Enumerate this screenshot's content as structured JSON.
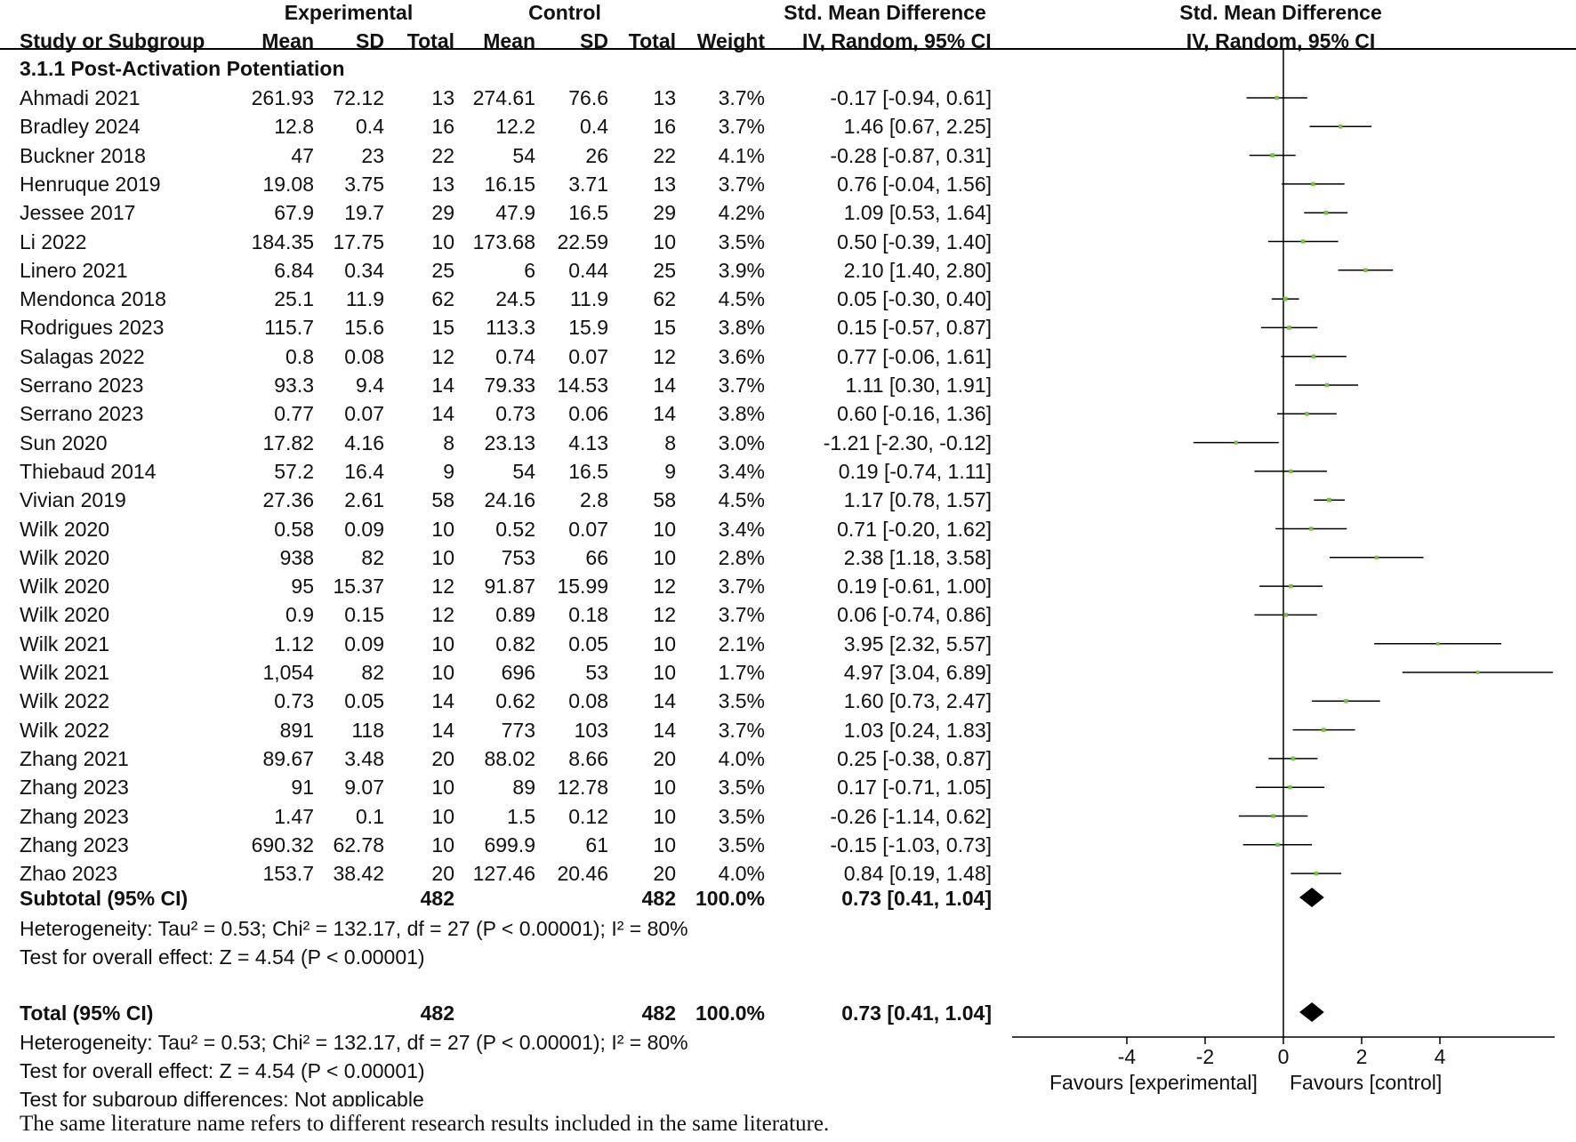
{
  "header": {
    "group_experimental": "Experimental",
    "group_control": "Control",
    "smd_title": "Std. Mean Difference",
    "plot_title": "Std. Mean Difference",
    "col_study": "Study or Subgroup",
    "col_mean_e": "Mean",
    "col_sd_e": "SD",
    "col_total_e": "Total",
    "col_mean_c": "Mean",
    "col_sd_c": "SD",
    "col_total_c": "Total",
    "col_weight": "Weight",
    "col_method": "IV, Random, 95% CI",
    "plot_method": "IV, Random, 95% CI"
  },
  "subgroup_title": "3.1.1 Post-Activation Potentiation",
  "studies": [
    {
      "name": "Ahmadi 2021",
      "mean_e": "261.93",
      "sd_e": "72.12",
      "n_e": "13",
      "mean_c": "274.61",
      "sd_c": "76.6",
      "n_c": "13",
      "weight": "3.7%",
      "ci_text": "-0.17 [-0.94, 0.61]"
    },
    {
      "name": "Bradley 2024",
      "mean_e": "12.8",
      "sd_e": "0.4",
      "n_e": "16",
      "mean_c": "12.2",
      "sd_c": "0.4",
      "n_c": "16",
      "weight": "3.7%",
      "ci_text": "1.46 [0.67, 2.25]"
    },
    {
      "name": "Buckner 2018",
      "mean_e": "47",
      "sd_e": "23",
      "n_e": "22",
      "mean_c": "54",
      "sd_c": "26",
      "n_c": "22",
      "weight": "4.1%",
      "ci_text": "-0.28 [-0.87, 0.31]"
    },
    {
      "name": "Henruque 2019",
      "mean_e": "19.08",
      "sd_e": "3.75",
      "n_e": "13",
      "mean_c": "16.15",
      "sd_c": "3.71",
      "n_c": "13",
      "weight": "3.7%",
      "ci_text": "0.76 [-0.04, 1.56]"
    },
    {
      "name": "Jessee 2017",
      "mean_e": "67.9",
      "sd_e": "19.7",
      "n_e": "29",
      "mean_c": "47.9",
      "sd_c": "16.5",
      "n_c": "29",
      "weight": "4.2%",
      "ci_text": "1.09 [0.53, 1.64]"
    },
    {
      "name": "Li 2022",
      "mean_e": "184.35",
      "sd_e": "17.75",
      "n_e": "10",
      "mean_c": "173.68",
      "sd_c": "22.59",
      "n_c": "10",
      "weight": "3.5%",
      "ci_text": "0.50 [-0.39, 1.40]"
    },
    {
      "name": "Linero 2021",
      "mean_e": "6.84",
      "sd_e": "0.34",
      "n_e": "25",
      "mean_c": "6",
      "sd_c": "0.44",
      "n_c": "25",
      "weight": "3.9%",
      "ci_text": "2.10 [1.40, 2.80]"
    },
    {
      "name": "Mendonca 2018",
      "mean_e": "25.1",
      "sd_e": "11.9",
      "n_e": "62",
      "mean_c": "24.5",
      "sd_c": "11.9",
      "n_c": "62",
      "weight": "4.5%",
      "ci_text": "0.05 [-0.30, 0.40]"
    },
    {
      "name": "Rodrigues 2023",
      "mean_e": "115.7",
      "sd_e": "15.6",
      "n_e": "15",
      "mean_c": "113.3",
      "sd_c": "15.9",
      "n_c": "15",
      "weight": "3.8%",
      "ci_text": "0.15 [-0.57, 0.87]"
    },
    {
      "name": "Salagas 2022",
      "mean_e": "0.8",
      "sd_e": "0.08",
      "n_e": "12",
      "mean_c": "0.74",
      "sd_c": "0.07",
      "n_c": "12",
      "weight": "3.6%",
      "ci_text": "0.77 [-0.06, 1.61]"
    },
    {
      "name": "Serrano 2023",
      "mean_e": "93.3",
      "sd_e": "9.4",
      "n_e": "14",
      "mean_c": "79.33",
      "sd_c": "14.53",
      "n_c": "14",
      "weight": "3.7%",
      "ci_text": "1.11 [0.30, 1.91]"
    },
    {
      "name": "Serrano 2023",
      "mean_e": "0.77",
      "sd_e": "0.07",
      "n_e": "14",
      "mean_c": "0.73",
      "sd_c": "0.06",
      "n_c": "14",
      "weight": "3.8%",
      "ci_text": "0.60 [-0.16, 1.36]"
    },
    {
      "name": "Sun 2020",
      "mean_e": "17.82",
      "sd_e": "4.16",
      "n_e": "8",
      "mean_c": "23.13",
      "sd_c": "4.13",
      "n_c": "8",
      "weight": "3.0%",
      "ci_text": "-1.21 [-2.30, -0.12]"
    },
    {
      "name": "Thiebaud 2014",
      "mean_e": "57.2",
      "sd_e": "16.4",
      "n_e": "9",
      "mean_c": "54",
      "sd_c": "16.5",
      "n_c": "9",
      "weight": "3.4%",
      "ci_text": "0.19 [-0.74, 1.11]"
    },
    {
      "name": "Vivian 2019",
      "mean_e": "27.36",
      "sd_e": "2.61",
      "n_e": "58",
      "mean_c": "24.16",
      "sd_c": "2.8",
      "n_c": "58",
      "weight": "4.5%",
      "ci_text": "1.17 [0.78, 1.57]"
    },
    {
      "name": "Wilk 2020",
      "mean_e": "0.58",
      "sd_e": "0.09",
      "n_e": "10",
      "mean_c": "0.52",
      "sd_c": "0.07",
      "n_c": "10",
      "weight": "3.4%",
      "ci_text": "0.71 [-0.20, 1.62]"
    },
    {
      "name": "Wilk 2020",
      "mean_e": "938",
      "sd_e": "82",
      "n_e": "10",
      "mean_c": "753",
      "sd_c": "66",
      "n_c": "10",
      "weight": "2.8%",
      "ci_text": "2.38 [1.18, 3.58]"
    },
    {
      "name": "Wilk 2020",
      "mean_e": "95",
      "sd_e": "15.37",
      "n_e": "12",
      "mean_c": "91.87",
      "sd_c": "15.99",
      "n_c": "12",
      "weight": "3.7%",
      "ci_text": "0.19 [-0.61, 1.00]"
    },
    {
      "name": "Wilk 2020",
      "mean_e": "0.9",
      "sd_e": "0.15",
      "n_e": "12",
      "mean_c": "0.89",
      "sd_c": "0.18",
      "n_c": "12",
      "weight": "3.7%",
      "ci_text": "0.06 [-0.74, 0.86]"
    },
    {
      "name": "Wilk 2021",
      "mean_e": "1.12",
      "sd_e": "0.09",
      "n_e": "10",
      "mean_c": "0.82",
      "sd_c": "0.05",
      "n_c": "10",
      "weight": "2.1%",
      "ci_text": "3.95 [2.32, 5.57]"
    },
    {
      "name": "Wilk 2021",
      "mean_e": "1,054",
      "sd_e": "82",
      "n_e": "10",
      "mean_c": "696",
      "sd_c": "53",
      "n_c": "10",
      "weight": "1.7%",
      "ci_text": "4.97 [3.04, 6.89]"
    },
    {
      "name": "Wilk 2022",
      "mean_e": "0.73",
      "sd_e": "0.05",
      "n_e": "14",
      "mean_c": "0.62",
      "sd_c": "0.08",
      "n_c": "14",
      "weight": "3.5%",
      "ci_text": "1.60 [0.73, 2.47]"
    },
    {
      "name": "Wilk 2022",
      "mean_e": "891",
      "sd_e": "118",
      "n_e": "14",
      "mean_c": "773",
      "sd_c": "103",
      "n_c": "14",
      "weight": "3.7%",
      "ci_text": "1.03 [0.24, 1.83]"
    },
    {
      "name": "Zhang 2021",
      "mean_e": "89.67",
      "sd_e": "3.48",
      "n_e": "20",
      "mean_c": "88.02",
      "sd_c": "8.66",
      "n_c": "20",
      "weight": "4.0%",
      "ci_text": "0.25 [-0.38, 0.87]"
    },
    {
      "name": "Zhang 2023",
      "mean_e": "91",
      "sd_e": "9.07",
      "n_e": "10",
      "mean_c": "89",
      "sd_c": "12.78",
      "n_c": "10",
      "weight": "3.5%",
      "ci_text": "0.17 [-0.71, 1.05]"
    },
    {
      "name": "Zhang 2023",
      "mean_e": "1.47",
      "sd_e": "0.1",
      "n_e": "10",
      "mean_c": "1.5",
      "sd_c": "0.12",
      "n_c": "10",
      "weight": "3.5%",
      "ci_text": "-0.26 [-1.14, 0.62]"
    },
    {
      "name": "Zhang 2023",
      "mean_e": "690.32",
      "sd_e": "62.78",
      "n_e": "10",
      "mean_c": "699.9",
      "sd_c": "61",
      "n_c": "10",
      "weight": "3.5%",
      "ci_text": "-0.15 [-1.03, 0.73]"
    },
    {
      "name": "Zhao 2023",
      "mean_e": "153.7",
      "sd_e": "38.42",
      "n_e": "20",
      "mean_c": "127.46",
      "sd_c": "20.46",
      "n_c": "20",
      "weight": "4.0%",
      "ci_text": "0.84 [0.19, 1.48]"
    }
  ],
  "subtotal": {
    "label": "Subtotal (95% CI)",
    "n_e": "482",
    "n_c": "482",
    "weight": "100.0%",
    "ci_text": "0.73 [0.41, 1.04]"
  },
  "subtotal_heterogeneity": "Heterogeneity: Tau² = 0.53; Chi² = 132.17, df = 27 (P < 0.00001); I² = 80%",
  "subtotal_overall": "Test for overall effect: Z = 4.54 (P < 0.00001)",
  "total": {
    "label": "Total (95% CI)",
    "n_e": "482",
    "n_c": "482",
    "weight": "100.0%",
    "ci_text": "0.73 [0.41, 1.04]"
  },
  "total_heterogeneity": "Heterogeneity: Tau² = 0.53; Chi² = 132.17, df = 27 (P < 0.00001); I² = 80%",
  "total_overall": "Test for overall effect: Z = 4.54 (P < 0.00001)",
  "subgroup_diff": "Test for subgroup differences: Not applicable",
  "axis": {
    "favours_left": "Favours [experimental]",
    "favours_right": "Favours [control]"
  },
  "footnote": "The same literature name refers to different research results included in the same literature.",
  "colors": {
    "point": "#7ac143",
    "line": "#000000",
    "diamond": "#000000"
  },
  "chart_data": {
    "type": "forest",
    "title": "Std. Mean Difference",
    "xlabel": "IV, Random, 95% CI",
    "xlim": [
      -6.5,
      7.0
    ],
    "ticks": [
      -4,
      -2,
      0,
      2,
      4
    ],
    "tick_labels": [
      "-4",
      "-2",
      "0",
      "2",
      "4"
    ],
    "studies": [
      {
        "smd": -0.17,
        "lo": -0.94,
        "hi": 0.61,
        "weight": 3.7
      },
      {
        "smd": 1.46,
        "lo": 0.67,
        "hi": 2.25,
        "weight": 3.7
      },
      {
        "smd": -0.28,
        "lo": -0.87,
        "hi": 0.31,
        "weight": 4.1
      },
      {
        "smd": 0.76,
        "lo": -0.04,
        "hi": 1.56,
        "weight": 3.7
      },
      {
        "smd": 1.09,
        "lo": 0.53,
        "hi": 1.64,
        "weight": 4.2
      },
      {
        "smd": 0.5,
        "lo": -0.39,
        "hi": 1.4,
        "weight": 3.5
      },
      {
        "smd": 2.1,
        "lo": 1.4,
        "hi": 2.8,
        "weight": 3.9
      },
      {
        "smd": 0.05,
        "lo": -0.3,
        "hi": 0.4,
        "weight": 4.5
      },
      {
        "smd": 0.15,
        "lo": -0.57,
        "hi": 0.87,
        "weight": 3.8
      },
      {
        "smd": 0.77,
        "lo": -0.06,
        "hi": 1.61,
        "weight": 3.6
      },
      {
        "smd": 1.11,
        "lo": 0.3,
        "hi": 1.91,
        "weight": 3.7
      },
      {
        "smd": 0.6,
        "lo": -0.16,
        "hi": 1.36,
        "weight": 3.8
      },
      {
        "smd": -1.21,
        "lo": -2.3,
        "hi": -0.12,
        "weight": 3.0
      },
      {
        "smd": 0.19,
        "lo": -0.74,
        "hi": 1.11,
        "weight": 3.4
      },
      {
        "smd": 1.17,
        "lo": 0.78,
        "hi": 1.57,
        "weight": 4.5
      },
      {
        "smd": 0.71,
        "lo": -0.2,
        "hi": 1.62,
        "weight": 3.4
      },
      {
        "smd": 2.38,
        "lo": 1.18,
        "hi": 3.58,
        "weight": 2.8
      },
      {
        "smd": 0.19,
        "lo": -0.61,
        "hi": 1.0,
        "weight": 3.7
      },
      {
        "smd": 0.06,
        "lo": -0.74,
        "hi": 0.86,
        "weight": 3.7
      },
      {
        "smd": 3.95,
        "lo": 2.32,
        "hi": 5.57,
        "weight": 2.1
      },
      {
        "smd": 4.97,
        "lo": 3.04,
        "hi": 6.89,
        "weight": 1.7
      },
      {
        "smd": 1.6,
        "lo": 0.73,
        "hi": 2.47,
        "weight": 3.5
      },
      {
        "smd": 1.03,
        "lo": 0.24,
        "hi": 1.83,
        "weight": 3.7
      },
      {
        "smd": 0.25,
        "lo": -0.38,
        "hi": 0.87,
        "weight": 4.0
      },
      {
        "smd": 0.17,
        "lo": -0.71,
        "hi": 1.05,
        "weight": 3.5
      },
      {
        "smd": -0.26,
        "lo": -1.14,
        "hi": 0.62,
        "weight": 3.5
      },
      {
        "smd": -0.15,
        "lo": -1.03,
        "hi": 0.73,
        "weight": 3.5
      },
      {
        "smd": 0.84,
        "lo": 0.19,
        "hi": 1.48,
        "weight": 4.0
      }
    ],
    "subtotal": {
      "smd": 0.73,
      "lo": 0.41,
      "hi": 1.04
    },
    "total": {
      "smd": 0.73,
      "lo": 0.41,
      "hi": 1.04
    }
  }
}
